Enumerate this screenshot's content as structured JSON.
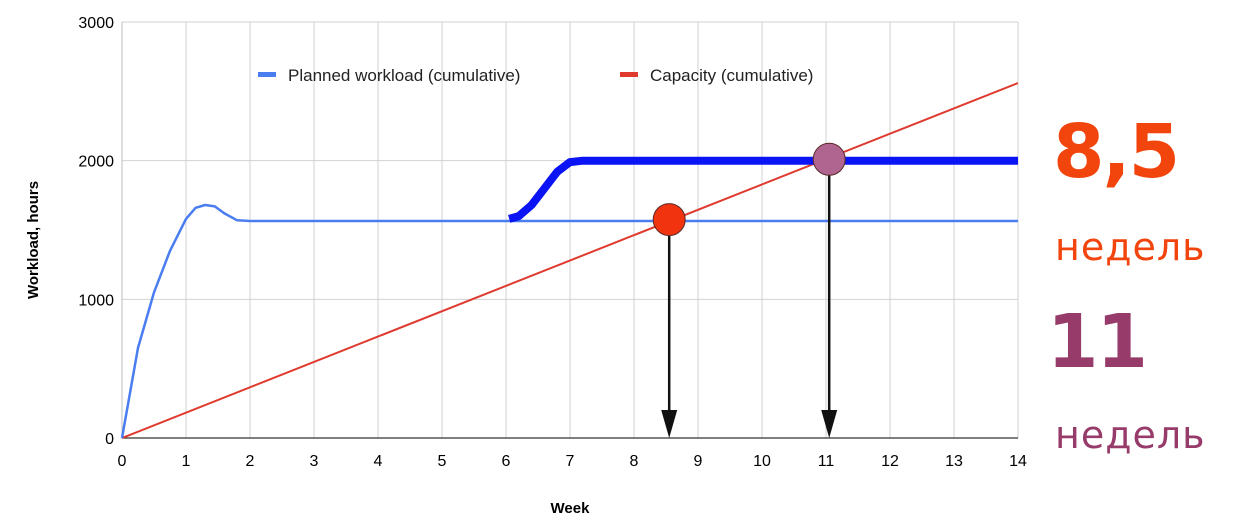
{
  "chart_data": {
    "type": "line",
    "title": "",
    "xlabel": "Week",
    "ylabel": "Workload, hours",
    "xlim": [
      0,
      14
    ],
    "ylim": [
      0,
      3000
    ],
    "x_ticks": [
      0,
      1,
      2,
      3,
      4,
      5,
      6,
      7,
      8,
      9,
      10,
      11,
      12,
      13,
      14
    ],
    "y_ticks": [
      0,
      1000,
      2000,
      3000
    ],
    "grid": true,
    "legend_position": "top",
    "series": [
      {
        "name": "Planned workload (cumulative)",
        "color": "#4a7df0",
        "x": [
          0,
          0.25,
          0.5,
          0.75,
          1,
          1.15,
          1.3,
          1.45,
          1.6,
          1.8,
          2,
          3,
          4,
          5,
          6,
          7,
          8,
          9,
          10,
          11,
          12,
          13,
          14
        ],
        "y": [
          0,
          650,
          1050,
          1350,
          1580,
          1660,
          1680,
          1670,
          1620,
          1570,
          1565,
          1565,
          1565,
          1565,
          1565,
          1565,
          1565,
          1565,
          1565,
          1565,
          1565,
          1565,
          1565
        ]
      },
      {
        "name": "Capacity (cumulative)",
        "color": "#e03a2f",
        "x": [
          0,
          14
        ],
        "y": [
          0,
          2560
        ]
      }
    ],
    "annotations": {
      "thick_line": {
        "color": "#0a14f5",
        "x": [
          6.05,
          6.2,
          6.4,
          6.6,
          6.8,
          7,
          7.2,
          8,
          9,
          10,
          11,
          12,
          13,
          14
        ],
        "y": [
          1580,
          1600,
          1680,
          1800,
          1920,
          1990,
          2000,
          2000,
          2000,
          2000,
          2000,
          2000,
          2000,
          2000
        ]
      },
      "points": [
        {
          "x": 8.55,
          "y": 1575,
          "color": "#f2330f"
        },
        {
          "x": 11.05,
          "y": 2010,
          "color": "#b06490"
        }
      ],
      "arrows": [
        {
          "x": 8.55,
          "y_from": 1575,
          "y_to": 0
        },
        {
          "x": 11.05,
          "y_from": 2010,
          "y_to": 0
        }
      ]
    }
  },
  "callouts": {
    "first_number": "8,5",
    "first_unit": "недель",
    "first_color": "#f2440d",
    "second_number": "11",
    "second_unit": "недель",
    "second_color": "#973c6a"
  }
}
